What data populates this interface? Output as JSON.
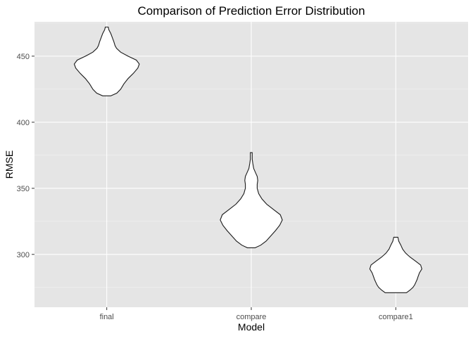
{
  "chart_data": {
    "type": "violin",
    "title": "Comparison of Prediction Error Distribution",
    "xlabel": "Model",
    "ylabel": "RMSE",
    "categories": [
      "final",
      "compare",
      "compare1"
    ],
    "yticks": [
      300,
      350,
      400,
      450
    ],
    "ytick_labels": [
      "300",
      "350",
      "400",
      "450"
    ],
    "ylim": [
      260,
      476
    ],
    "grid": true,
    "theme": "ggplot-grey",
    "colors": {
      "panel_background": "#e5e5e5",
      "grid": "#ffffff",
      "violin_fill": "#ffffff",
      "violin_outline": "#1a1a1a"
    },
    "series": [
      {
        "category": "final",
        "min": 420,
        "max": 472,
        "profile": [
          [
            420,
            0.14
          ],
          [
            422,
            0.34
          ],
          [
            425,
            0.47
          ],
          [
            429,
            0.58
          ],
          [
            433,
            0.72
          ],
          [
            437,
            0.9
          ],
          [
            441,
            1.05
          ],
          [
            444,
            1.1
          ],
          [
            447,
            1.0
          ],
          [
            450,
            0.72
          ],
          [
            453,
            0.47
          ],
          [
            456,
            0.33
          ],
          [
            458,
            0.28
          ],
          [
            461,
            0.24
          ],
          [
            464,
            0.19
          ],
          [
            467,
            0.14
          ],
          [
            470,
            0.07
          ],
          [
            472,
            0.05
          ]
        ]
      },
      {
        "category": "compare",
        "min": 305,
        "max": 377,
        "profile": [
          [
            305,
            0.13
          ],
          [
            307,
            0.32
          ],
          [
            310,
            0.5
          ],
          [
            314,
            0.66
          ],
          [
            318,
            0.82
          ],
          [
            322,
            0.96
          ],
          [
            326,
            1.05
          ],
          [
            330,
            0.98
          ],
          [
            334,
            0.75
          ],
          [
            338,
            0.52
          ],
          [
            342,
            0.36
          ],
          [
            346,
            0.25
          ],
          [
            350,
            0.2
          ],
          [
            353,
            0.2
          ],
          [
            356,
            0.22
          ],
          [
            359,
            0.2
          ],
          [
            362,
            0.14
          ],
          [
            365,
            0.08
          ],
          [
            369,
            0.05
          ],
          [
            372,
            0.03
          ],
          [
            377,
            0.03
          ]
        ]
      },
      {
        "category": "compare1",
        "min": 271,
        "max": 313,
        "profile": [
          [
            271,
            0.36
          ],
          [
            273,
            0.48
          ],
          [
            275,
            0.58
          ],
          [
            277,
            0.64
          ],
          [
            279,
            0.68
          ],
          [
            281,
            0.72
          ],
          [
            283,
            0.75
          ],
          [
            286,
            0.8
          ],
          [
            289,
            0.88
          ],
          [
            292,
            0.84
          ],
          [
            295,
            0.66
          ],
          [
            298,
            0.48
          ],
          [
            301,
            0.33
          ],
          [
            304,
            0.23
          ],
          [
            307,
            0.17
          ],
          [
            310,
            0.1
          ],
          [
            313,
            0.07
          ]
        ]
      }
    ]
  }
}
